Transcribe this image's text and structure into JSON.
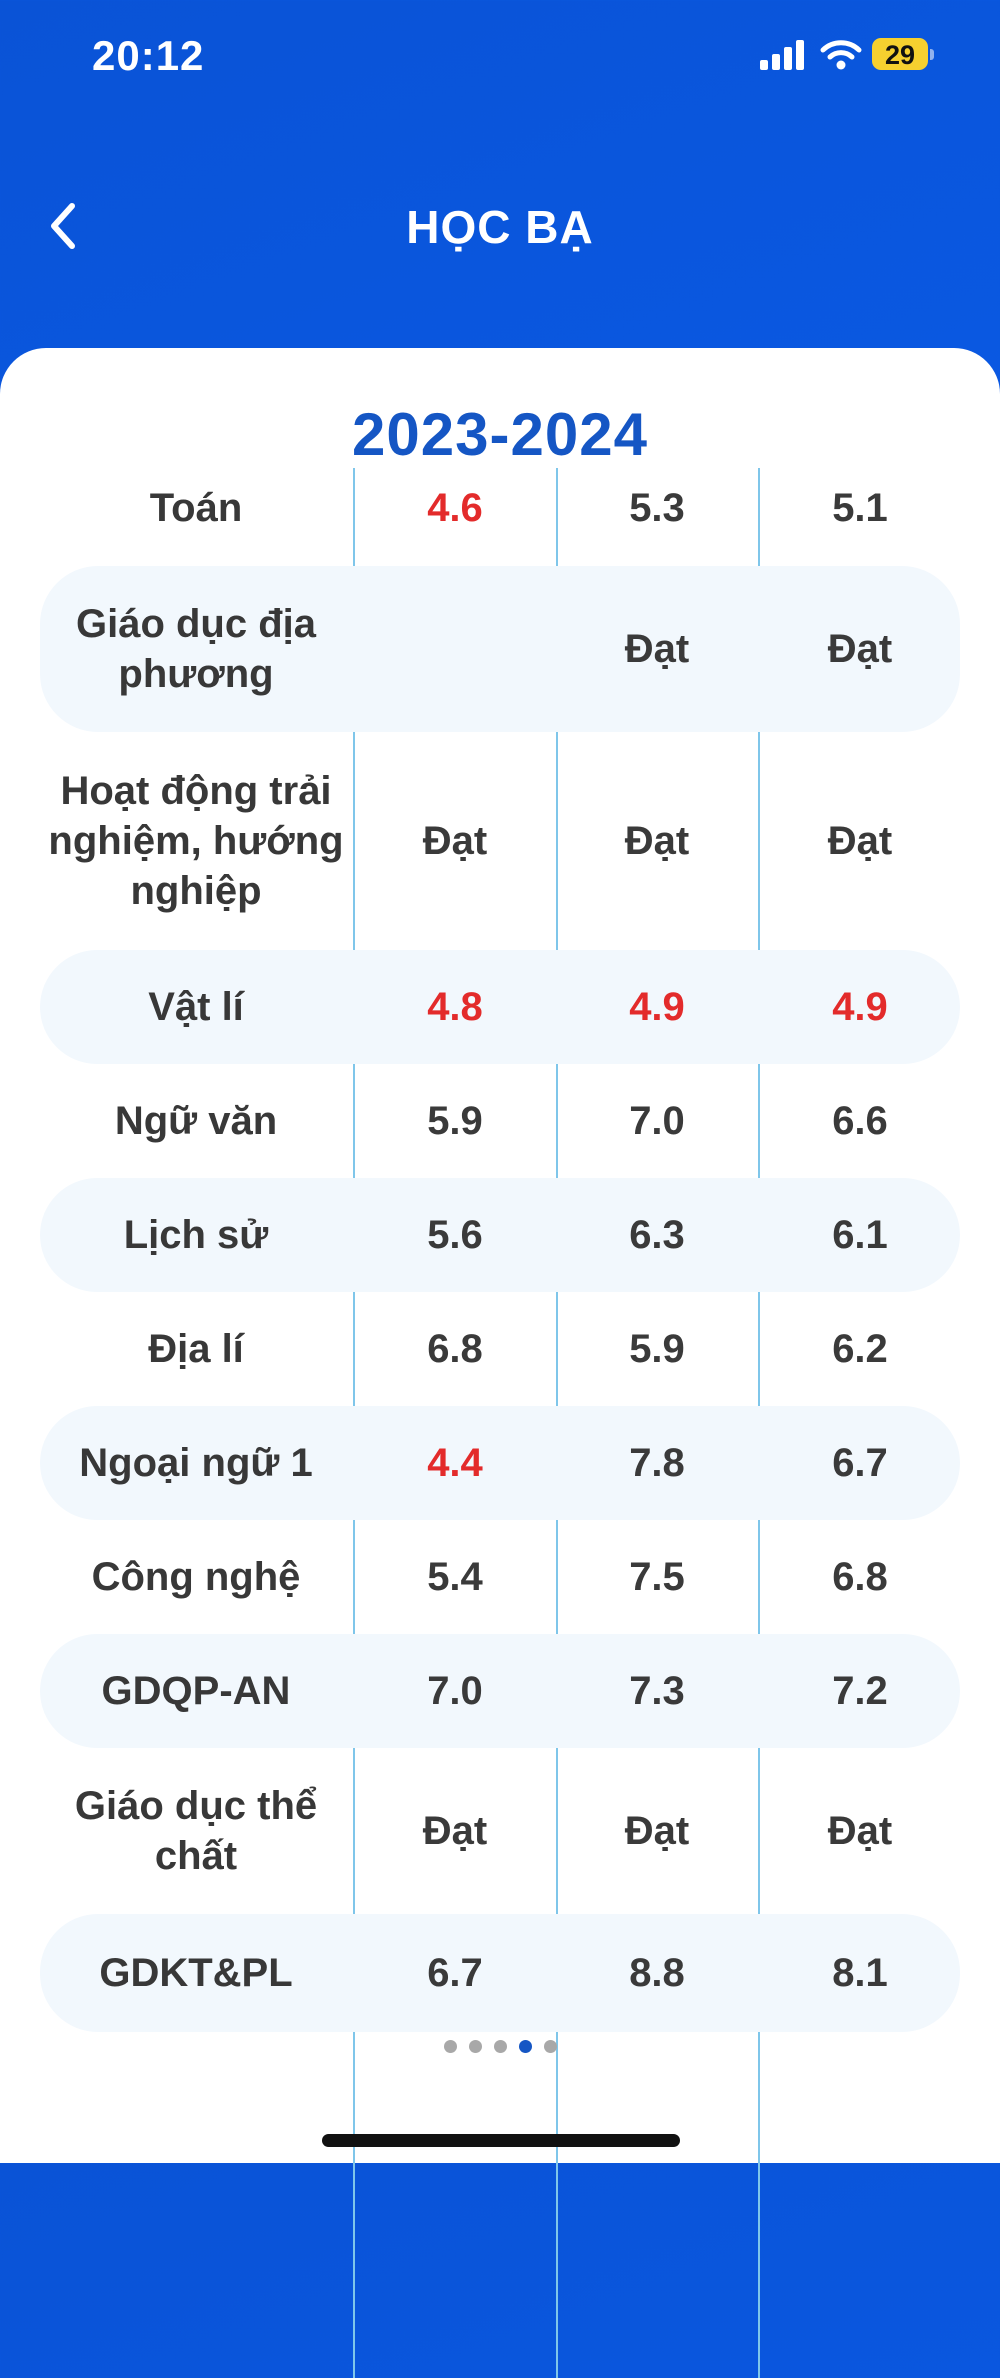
{
  "status": {
    "time": "20:12",
    "battery": "29"
  },
  "header": {
    "title": "HỌC BẠ"
  },
  "card": {
    "year": "2023-2024"
  },
  "rows": [
    {
      "subject": "Toán",
      "v1": "4.6",
      "v2": "5.3",
      "v3": "5.1"
    },
    {
      "subject": "Giáo dục địa phương",
      "v1": "",
      "v2": "Đạt",
      "v3": "Đạt"
    },
    {
      "subject": "Hoạt động trải nghiệm, hướng nghiệp",
      "v1": "Đạt",
      "v2": "Đạt",
      "v3": "Đạt"
    },
    {
      "subject": "Vật lí",
      "v1": "4.8",
      "v2": "4.9",
      "v3": "4.9"
    },
    {
      "subject": "Ngữ văn",
      "v1": "5.9",
      "v2": "7.0",
      "v3": "6.6"
    },
    {
      "subject": "Lịch sử",
      "v1": "5.6",
      "v2": "6.3",
      "v3": "6.1"
    },
    {
      "subject": "Địa lí",
      "v1": "6.8",
      "v2": "5.9",
      "v3": "6.2"
    },
    {
      "subject": "Ngoại ngữ 1",
      "v1": "4.4",
      "v2": "7.8",
      "v3": "6.7"
    },
    {
      "subject": "Công nghệ",
      "v1": "5.4",
      "v2": "7.5",
      "v3": "6.8"
    },
    {
      "subject": "GDQP-AN",
      "v1": "7.0",
      "v2": "7.3",
      "v3": "7.2"
    },
    {
      "subject": "Giáo dục thể chất",
      "v1": "Đạt",
      "v2": "Đạt",
      "v3": "Đạt"
    },
    {
      "subject": "GDKT&PL",
      "v1": "6.7",
      "v2": "8.8",
      "v3": "8.1"
    }
  ],
  "pagination": {
    "pages": 5,
    "active": 4
  },
  "colors": {
    "header": "#0a5ae6",
    "year": "#1556c4",
    "low_score": "#e32b2b",
    "row_shade": "#f2f8fd",
    "divider": "#7fc6ea"
  }
}
